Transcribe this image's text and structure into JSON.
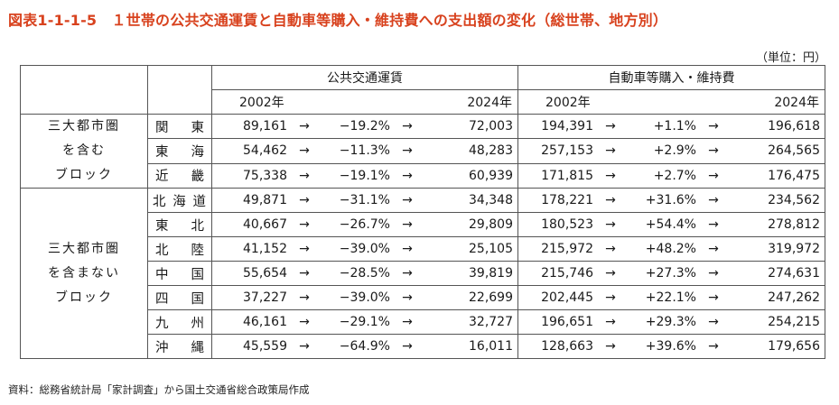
{
  "title": "図表1-1-1-5　１世帯の公共交通運賃と自動車等購入・維持費への支出額の変化（総世帯、地方別）",
  "unit": "（単位：円）",
  "headers": {
    "public": "公共交通運賃",
    "car": "自動車等購入・維持費",
    "year_from": "2002年",
    "year_to": "2024年"
  },
  "arrow": "→",
  "groups": {
    "a": [
      "三大都市圏",
      "を含む",
      "ブロック"
    ],
    "b": [
      "三大都市圏",
      "を含まない",
      "ブロック"
    ]
  },
  "rows": [
    {
      "region": "関　東",
      "pub_2002": "89,161",
      "pub_change": "−19.2%",
      "pub_2024": "72,003",
      "car_2002": "194,391",
      "car_change": "+1.1%",
      "car_2024": "196,618"
    },
    {
      "region": "東　海",
      "pub_2002": "54,462",
      "pub_change": "−11.3%",
      "pub_2024": "48,283",
      "car_2002": "257,153",
      "car_change": "+2.9%",
      "car_2024": "264,565"
    },
    {
      "region": "近　畿",
      "pub_2002": "75,338",
      "pub_change": "−19.1%",
      "pub_2024": "60,939",
      "car_2002": "171,815",
      "car_change": "+2.7%",
      "car_2024": "176,475"
    },
    {
      "region": "北海道",
      "pub_2002": "49,871",
      "pub_change": "−31.1%",
      "pub_2024": "34,348",
      "car_2002": "178,221",
      "car_change": "+31.6%",
      "car_2024": "234,562"
    },
    {
      "region": "東　北",
      "pub_2002": "40,667",
      "pub_change": "−26.7%",
      "pub_2024": "29,809",
      "car_2002": "180,523",
      "car_change": "+54.4%",
      "car_2024": "278,812"
    },
    {
      "region": "北　陸",
      "pub_2002": "41,152",
      "pub_change": "−39.0%",
      "pub_2024": "25,105",
      "car_2002": "215,972",
      "car_change": "+48.2%",
      "car_2024": "319,972"
    },
    {
      "region": "中　国",
      "pub_2002": "55,654",
      "pub_change": "−28.5%",
      "pub_2024": "39,819",
      "car_2002": "215,746",
      "car_change": "+27.3%",
      "car_2024": "274,631"
    },
    {
      "region": "四　国",
      "pub_2002": "37,227",
      "pub_change": "−39.0%",
      "pub_2024": "22,699",
      "car_2002": "202,445",
      "car_change": "+22.1%",
      "car_2024": "247,262"
    },
    {
      "region": "九　州",
      "pub_2002": "46,161",
      "pub_change": "−29.1%",
      "pub_2024": "32,727",
      "car_2002": "196,651",
      "car_change": "+29.3%",
      "car_2024": "254,215"
    },
    {
      "region": "沖　縄",
      "pub_2002": "45,559",
      "pub_change": "−64.9%",
      "pub_2024": "16,011",
      "car_2002": "128,663",
      "car_change": "+39.6%",
      "car_2024": "179,656"
    }
  ],
  "note": "資料：総務省統計局「家計調査」から国土交通省総合政策局作成",
  "colors": {
    "title": "#d8421e",
    "border": "#555555"
  }
}
